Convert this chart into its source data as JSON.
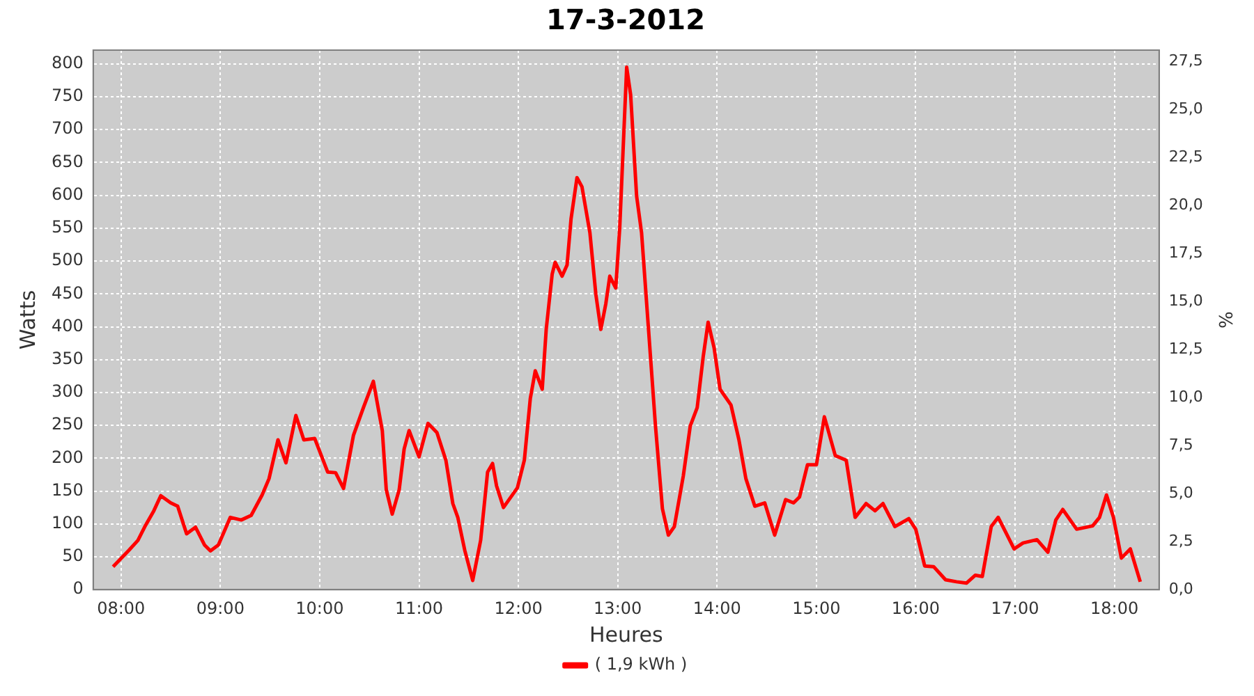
{
  "chart_data": {
    "type": "line",
    "title": "17-3-2012",
    "xlabel": "Heures",
    "ylabel": "Watts",
    "y2label": "%",
    "x": [
      7.92,
      8.08,
      8.17,
      8.24,
      8.33,
      8.4,
      8.5,
      8.57,
      8.66,
      8.75,
      8.84,
      8.9,
      8.98,
      9.1,
      9.21,
      9.31,
      9.42,
      9.49,
      9.58,
      9.66,
      9.76,
      9.84,
      9.95,
      10.08,
      10.16,
      10.24,
      10.34,
      10.44,
      10.54,
      10.63,
      10.67,
      10.73,
      10.8,
      10.85,
      10.9,
      11.0,
      11.09,
      11.18,
      11.27,
      11.34,
      11.39,
      11.46,
      11.54,
      11.62,
      11.69,
      11.74,
      11.78,
      11.85,
      11.99,
      12.06,
      12.12,
      12.17,
      12.24,
      12.28,
      12.34,
      12.37,
      12.44,
      12.49,
      12.53,
      12.59,
      12.64,
      12.72,
      12.78,
      12.83,
      12.88,
      12.92,
      12.98,
      13.02,
      13.06,
      13.09,
      13.13,
      13.19,
      13.24,
      13.31,
      13.38,
      13.45,
      13.51,
      13.57,
      13.66,
      13.73,
      13.8,
      13.86,
      13.91,
      13.97,
      14.03,
      14.14,
      14.22,
      14.29,
      14.38,
      14.48,
      14.58,
      14.69,
      14.77,
      14.83,
      14.91,
      15.0,
      15.08,
      15.19,
      15.3,
      15.39,
      15.5,
      15.59,
      15.67,
      15.79,
      15.93,
      16.0,
      16.09,
      16.18,
      16.3,
      16.41,
      16.51,
      16.6,
      16.67,
      16.76,
      16.83,
      16.9,
      16.99,
      17.08,
      17.22,
      17.33,
      17.41,
      17.48,
      17.62,
      17.78,
      17.85,
      17.92,
      17.99,
      18.07,
      18.16,
      18.26
    ],
    "series": [
      {
        "name": "( 1,9 kWh )",
        "color": "#ff0000",
        "values": [
          35,
          60,
          75,
          96,
          120,
          143,
          132,
          127,
          85,
          95,
          68,
          59,
          68,
          110,
          106,
          113,
          144,
          169,
          228,
          193,
          265,
          228,
          230,
          179,
          178,
          154,
          235,
          277,
          317,
          242,
          152,
          115,
          152,
          214,
          242,
          202,
          253,
          239,
          197,
          131,
          110,
          60,
          14,
          75,
          179,
          192,
          158,
          125,
          155,
          197,
          291,
          333,
          305,
          396,
          480,
          498,
          477,
          494,
          564,
          627,
          613,
          543,
          449,
          396,
          435,
          477,
          459,
          550,
          690,
          795,
          753,
          599,
          543,
          396,
          249,
          123,
          83,
          96,
          173,
          249,
          277,
          354,
          407,
          368,
          305,
          281,
          228,
          169,
          127,
          132,
          83,
          137,
          132,
          141,
          190,
          190,
          263,
          204,
          197,
          110,
          131,
          120,
          131,
          96,
          108,
          92,
          36,
          35,
          15,
          12,
          10,
          22,
          20,
          96,
          110,
          89,
          62,
          71,
          76,
          57,
          106,
          122,
          92,
          97,
          110,
          144,
          110,
          48,
          62,
          12
        ]
      }
    ],
    "xlim": [
      7.72,
      18.45
    ],
    "xticks": [
      {
        "value": 8,
        "label": "08:00"
      },
      {
        "value": 9,
        "label": "09:00"
      },
      {
        "value": 10,
        "label": "10:00"
      },
      {
        "value": 11,
        "label": "11:00"
      },
      {
        "value": 12,
        "label": "12:00"
      },
      {
        "value": 13,
        "label": "13:00"
      },
      {
        "value": 14,
        "label": "14:00"
      },
      {
        "value": 15,
        "label": "15:00"
      },
      {
        "value": 16,
        "label": "16:00"
      },
      {
        "value": 17,
        "label": "17:00"
      },
      {
        "value": 18,
        "label": "18:00"
      }
    ],
    "ylim": [
      0,
      821
    ],
    "yticks": [
      0,
      50,
      100,
      150,
      200,
      250,
      300,
      350,
      400,
      450,
      500,
      550,
      600,
      650,
      700,
      750,
      800
    ],
    "y2lim": [
      0,
      28.1
    ],
    "y2ticks": [
      {
        "value": 0,
        "label": "0,0"
      },
      {
        "value": 2.5,
        "label": "2,5"
      },
      {
        "value": 5,
        "label": "5,0"
      },
      {
        "value": 7.5,
        "label": "7,5"
      },
      {
        "value": 10,
        "label": "10,0"
      },
      {
        "value": 12.5,
        "label": "12,5"
      },
      {
        "value": 15,
        "label": "15,0"
      },
      {
        "value": 17.5,
        "label": "17,5"
      },
      {
        "value": 20,
        "label": "20,0"
      },
      {
        "value": 22.5,
        "label": "22,5"
      },
      {
        "value": 25,
        "label": "25,0"
      },
      {
        "value": 27.5,
        "label": "27,5"
      }
    ],
    "grid": true,
    "legend": "bottom",
    "marker": "none",
    "line_style": "solid"
  }
}
